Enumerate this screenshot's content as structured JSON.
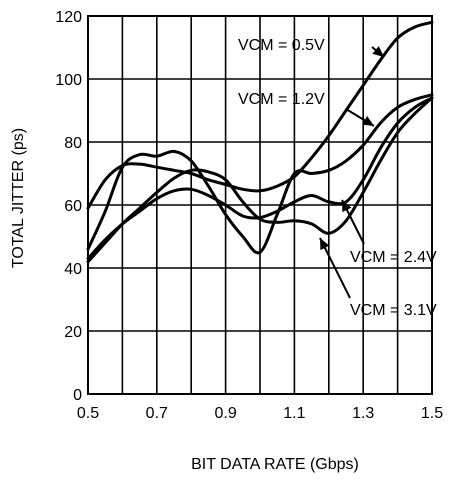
{
  "chart_data": {
    "type": "line",
    "title": "",
    "xlabel": "BIT DATA RATE (Gbps)",
    "ylabel": "TOTAL JITTER (ps)",
    "xlim": [
      0.5,
      1.5
    ],
    "ylim": [
      0,
      120
    ],
    "grid": true,
    "legend": "none",
    "x_ticks": [
      0.5,
      0.6,
      0.7,
      0.8,
      0.9,
      1.0,
      1.1,
      1.2,
      1.3,
      1.4,
      1.5
    ],
    "x_tick_labels": [
      "0.5",
      "",
      "0.7",
      "",
      "0.9",
      "",
      "1.1",
      "",
      "1.3",
      "",
      "1.5"
    ],
    "y_ticks": [
      0,
      20,
      40,
      60,
      80,
      100,
      120
    ],
    "y_tick_labels": [
      "0",
      "20",
      "40",
      "60",
      "80",
      "100",
      "120"
    ],
    "series": [
      {
        "name": "VCM = 0.5V",
        "x": [
          0.5,
          0.55,
          0.6,
          0.65,
          0.7,
          0.75,
          0.8,
          0.85,
          0.9,
          0.95,
          1.0,
          1.05,
          1.1,
          1.15,
          1.2,
          1.25,
          1.3,
          1.35,
          1.4,
          1.45,
          1.5
        ],
        "y": [
          59,
          68,
          72.5,
          73,
          72,
          71,
          70,
          68,
          66.5,
          65,
          64.5,
          66,
          69,
          75,
          82,
          90,
          98,
          106,
          113,
          116.5,
          118
        ]
      },
      {
        "name": "VCM = 1.2V",
        "x": [
          0.5,
          0.55,
          0.6,
          0.65,
          0.7,
          0.75,
          0.8,
          0.85,
          0.9,
          0.95,
          1.0,
          1.05,
          1.1,
          1.15,
          1.2,
          1.25,
          1.3,
          1.35,
          1.4,
          1.45,
          1.5
        ],
        "y": [
          46,
          58,
          72,
          76,
          75.5,
          77,
          74,
          66,
          57,
          50,
          45,
          57,
          70,
          70,
          71,
          74,
          79,
          86,
          91,
          93.5,
          95
        ]
      },
      {
        "name": "VCM = 2.4V",
        "x": [
          0.5,
          0.55,
          0.6,
          0.65,
          0.7,
          0.75,
          0.8,
          0.85,
          0.9,
          0.95,
          1.0,
          1.05,
          1.1,
          1.15,
          1.2,
          1.25,
          1.3,
          1.35,
          1.4,
          1.45,
          1.5
        ],
        "y": [
          43,
          49,
          54,
          58,
          62,
          64.5,
          65,
          63,
          60,
          56.5,
          56,
          58,
          61,
          63,
          61,
          61,
          68,
          78,
          86,
          91,
          94
        ]
      },
      {
        "name": "VCM = 3.1V",
        "x": [
          0.5,
          0.55,
          0.6,
          0.65,
          0.7,
          0.75,
          0.8,
          0.85,
          0.9,
          0.95,
          1.0,
          1.05,
          1.1,
          1.15,
          1.2,
          1.25,
          1.3,
          1.35,
          1.4,
          1.45,
          1.5
        ],
        "y": [
          42,
          48,
          54,
          59,
          64,
          68.5,
          71,
          70.5,
          68,
          61,
          55.5,
          54.5,
          55,
          54,
          51,
          55,
          64,
          74,
          83,
          89,
          94
        ]
      }
    ],
    "annotations": [
      {
        "text": "VCM = 0.5V",
        "series": "VCM = 0.5V"
      },
      {
        "text": "VCM = 1.2V",
        "series": "VCM = 1.2V"
      },
      {
        "text": "VCM = 2.4V",
        "series": "VCM = 2.4V"
      },
      {
        "text": "VCM = 3.1V",
        "series": "VCM = 3.1V"
      }
    ],
    "colors": {
      "line": "#000000",
      "grid": "#000000",
      "background": "#ffffff"
    }
  }
}
